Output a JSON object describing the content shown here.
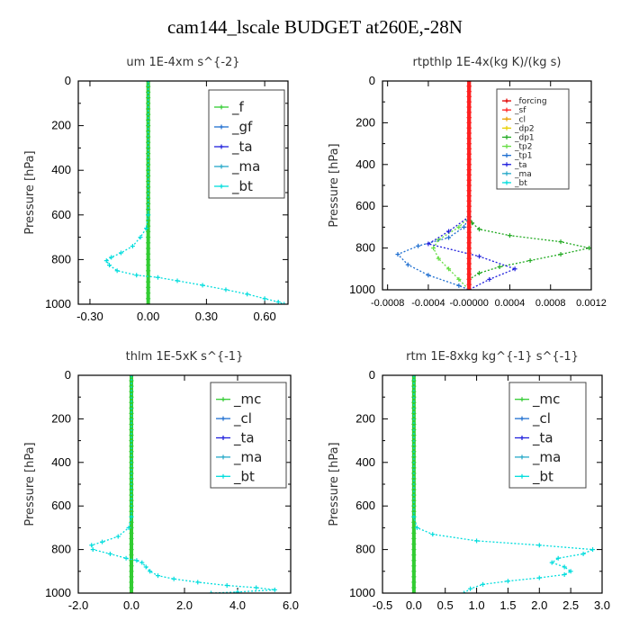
{
  "figure": {
    "title": "cam144_lscale  BUDGET at260E,-28N"
  },
  "colors": {
    "f": "#33cc33",
    "gf": "#1f6fd0",
    "ta": "#2020dd",
    "ma": "#26a8c8",
    "bt": "#00dddd",
    "mc": "#33cc33",
    "cl": "#1f6fd0",
    "forcing": "#e00000",
    "sf": "#ff2020",
    "cl_small": "#e8a000",
    "dp2": "#e8d000",
    "dp1": "#22aa22",
    "tp2": "#66dd44",
    "tp1": "#1f6fd0",
    "ta_small": "#2020dd",
    "ma_small": "#26a8c8",
    "bt_small": "#00dddd"
  },
  "chart_data": [
    {
      "type": "line",
      "title": "um   1E-4xm  s^{-2}",
      "ylabel": "Pressure [hPa]",
      "xlim": [
        -0.36,
        0.72
      ],
      "ylim": [
        1000,
        0
      ],
      "xticks": [
        -0.3,
        0.0,
        0.3,
        0.6
      ],
      "xtick_labels": [
        "-0.30",
        "0.00",
        "0.30",
        "0.60"
      ],
      "yticks": [
        0,
        200,
        400,
        600,
        800,
        1000
      ],
      "ytick_labels": [
        "0",
        "200",
        "400",
        "600",
        "800",
        "1000"
      ],
      "legend": {
        "position": "top-right",
        "style": "large",
        "entries": [
          "_f",
          "_gf",
          "_ta",
          "_ma",
          "_bt"
        ]
      },
      "series": [
        {
          "key": "f",
          "name": "_f",
          "points": [
            [
              0,
              0
            ],
            [
              0,
              1000
            ]
          ]
        },
        {
          "key": "bt",
          "name": "_bt",
          "points": [
            [
              0,
              0
            ],
            [
              0,
              600
            ],
            [
              -0.01,
              660
            ],
            [
              -0.04,
              700
            ],
            [
              -0.08,
              740
            ],
            [
              -0.14,
              770
            ],
            [
              -0.19,
              790
            ],
            [
              -0.215,
              805
            ],
            [
              -0.2,
              825
            ],
            [
              -0.16,
              850
            ],
            [
              -0.06,
              870
            ],
            [
              0.05,
              880
            ],
            [
              0.15,
              895
            ],
            [
              0.28,
              915
            ],
            [
              0.4,
              935
            ],
            [
              0.51,
              955
            ],
            [
              0.6,
              975
            ],
            [
              0.67,
              990
            ],
            [
              0.7,
              1000
            ]
          ]
        }
      ]
    },
    {
      "type": "line",
      "title": "rtpthlp   1E-4x(kg K)/(kg s)",
      "ylabel": "Pressure [hPa]",
      "xlim": [
        -0.00085,
        0.0012
      ],
      "ylim": [
        1000,
        0
      ],
      "xticks": [
        -0.0008,
        -0.0004,
        0.0,
        0.0004,
        0.0008,
        0.0012
      ],
      "xtick_labels": [
        "-0.0008",
        "-0.0004",
        "-0.00000",
        "0.0004",
        "0.0008",
        "0.0012"
      ],
      "yticks": [
        0,
        200,
        400,
        600,
        800,
        1000
      ],
      "ytick_labels": [
        "0",
        "200",
        "400",
        "600",
        "800",
        "1000"
      ],
      "legend": {
        "position": "top-right",
        "style": "small",
        "entries": [
          "_forcing",
          "_sf",
          "_cl",
          "_dp2",
          "_dp1",
          "_tp2",
          "_tp1",
          "_ta",
          "_ma",
          "_bt"
        ]
      },
      "series": [
        {
          "key": "forcing",
          "name": "_forcing",
          "points": [
            [
              0,
              0
            ],
            [
              0,
              1000
            ]
          ]
        },
        {
          "key": "dp1",
          "name": "_dp1",
          "points": [
            [
              0,
              650
            ],
            [
              3e-05,
              680
            ],
            [
              0.0001,
              710
            ],
            [
              0.0004,
              740
            ],
            [
              0.0009,
              770
            ],
            [
              0.00118,
              800
            ],
            [
              0.0009,
              830
            ],
            [
              0.0006,
              860
            ],
            [
              0.0003,
              890
            ],
            [
              0.0001,
              920
            ],
            [
              0.0,
              950
            ],
            [
              0.0,
              1000
            ]
          ]
        },
        {
          "key": "tp2",
          "name": "_tp2",
          "points": [
            [
              0,
              650
            ],
            [
              -0.0001,
              700
            ],
            [
              -0.0003,
              760
            ],
            [
              -0.00035,
              800
            ],
            [
              -0.0003,
              850
            ],
            [
              -0.0002,
              900
            ],
            [
              -0.0001,
              950
            ],
            [
              0,
              1000
            ]
          ]
        },
        {
          "key": "tp1",
          "name": "_tp1",
          "points": [
            [
              0,
              650
            ],
            [
              -5e-05,
              700
            ],
            [
              -0.0002,
              750
            ],
            [
              -0.0005,
              790
            ],
            [
              -0.0007,
              830
            ],
            [
              -0.0006,
              880
            ],
            [
              -0.0004,
              930
            ],
            [
              -0.0001,
              980
            ],
            [
              0,
              1000
            ]
          ]
        },
        {
          "key": "ta_small",
          "name": "_ta",
          "points": [
            [
              0,
              650
            ],
            [
              -0.0002,
              720
            ],
            [
              -0.0004,
              780
            ],
            [
              0.0001,
              840
            ],
            [
              0.00045,
              900
            ],
            [
              0.0002,
              950
            ],
            [
              0,
              1000
            ]
          ]
        },
        {
          "key": "sf",
          "name": "_sf",
          "points": [
            [
              0,
              0
            ],
            [
              0,
              1000
            ]
          ]
        }
      ]
    },
    {
      "type": "line",
      "title": "thlm   1E-5xK  s^{-1}",
      "ylabel": "Pressure [hPa]",
      "xlim": [
        -2.0,
        6.0
      ],
      "ylim": [
        1000,
        0
      ],
      "xticks": [
        -2.0,
        0.0,
        2.0,
        4.0,
        6.0
      ],
      "xtick_labels": [
        "-2.0",
        "0.0",
        "2.0",
        "4.0",
        "6.0"
      ],
      "yticks": [
        0,
        200,
        400,
        600,
        800,
        1000
      ],
      "ytick_labels": [
        "0",
        "200",
        "400",
        "600",
        "800",
        "1000"
      ],
      "legend": {
        "position": "top-right",
        "style": "large",
        "entries": [
          "_mc",
          "_cl",
          "_ta",
          "_ma",
          "_bt"
        ]
      },
      "series": [
        {
          "key": "mc",
          "name": "_mc",
          "points": [
            [
              0,
              0
            ],
            [
              0,
              1000
            ]
          ]
        },
        {
          "key": "bt",
          "name": "_bt",
          "points": [
            [
              0,
              0
            ],
            [
              0,
              650
            ],
            [
              -0.1,
              700
            ],
            [
              -0.5,
              740
            ],
            [
              -1.1,
              765
            ],
            [
              -1.5,
              780
            ],
            [
              -1.45,
              800
            ],
            [
              -0.8,
              820
            ],
            [
              -0.2,
              840
            ],
            [
              0.2,
              850
            ],
            [
              0.4,
              860
            ],
            [
              0.55,
              880
            ],
            [
              0.7,
              900
            ],
            [
              1.0,
              920
            ],
            [
              1.6,
              935
            ],
            [
              2.5,
              950
            ],
            [
              3.6,
              965
            ],
            [
              4.7,
              975
            ],
            [
              5.4,
              985
            ],
            [
              4.0,
              995
            ],
            [
              3.0,
              1000
            ]
          ]
        }
      ]
    },
    {
      "type": "line",
      "title": "rtm   1E-8xkg  kg^{-1}  s^{-1}",
      "ylabel": "Pressure [hPa]",
      "xlim": [
        -0.5,
        3.0
      ],
      "ylim": [
        1000,
        0
      ],
      "xticks": [
        -0.5,
        0.0,
        0.5,
        1.0,
        1.5,
        2.0,
        2.5,
        3.0
      ],
      "xtick_labels": [
        "-0.5",
        "0.0",
        "0.5",
        "1.0",
        "1.5",
        "2.0",
        "2.5",
        "3.0"
      ],
      "yticks": [
        0,
        200,
        400,
        600,
        800,
        1000
      ],
      "ytick_labels": [
        "0",
        "200",
        "400",
        "600",
        "800",
        "1000"
      ],
      "legend": {
        "position": "top-right",
        "style": "large",
        "entries": [
          "_mc",
          "_cl",
          "_ta",
          "_ma",
          "_bt"
        ]
      },
      "series": [
        {
          "key": "mc",
          "name": "_mc",
          "points": [
            [
              0,
              0
            ],
            [
              0,
              1000
            ]
          ]
        },
        {
          "key": "bt",
          "name": "_bt",
          "points": [
            [
              0,
              0
            ],
            [
              0,
              650
            ],
            [
              0.05,
              700
            ],
            [
              0.3,
              730
            ],
            [
              1.0,
              760
            ],
            [
              2.0,
              780
            ],
            [
              2.85,
              800
            ],
            [
              2.7,
              820
            ],
            [
              2.3,
              840
            ],
            [
              2.2,
              860
            ],
            [
              2.4,
              880
            ],
            [
              2.5,
              900
            ],
            [
              2.4,
              915
            ],
            [
              2.0,
              930
            ],
            [
              1.5,
              945
            ],
            [
              1.1,
              960
            ],
            [
              0.9,
              980
            ],
            [
              0.8,
              1000
            ]
          ]
        }
      ]
    }
  ]
}
